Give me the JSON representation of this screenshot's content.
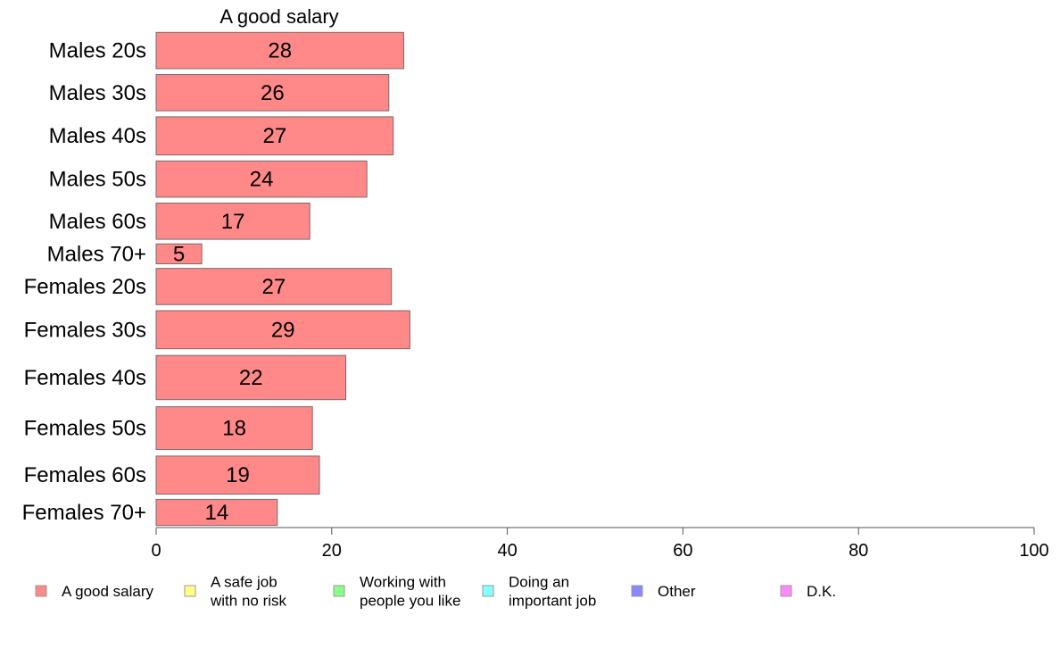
{
  "chart_data": {
    "type": "bar",
    "orientation": "horizontal",
    "title": "A good salary",
    "xlim": [
      0,
      100
    ],
    "xticks": [
      0,
      20,
      40,
      60,
      80,
      100
    ],
    "grid": false,
    "categories": [
      "Males 20s",
      "Males 30s",
      "Males 40s",
      "Males 50s",
      "Males 60s",
      "Males 70+",
      "Females 20s",
      "Females 30s",
      "Females 40s",
      "Females 50s",
      "Females 60s",
      "Females 70+"
    ],
    "series": [
      {
        "name": "A good salary",
        "color": "#ff8888",
        "values": [
          28.2,
          26.5,
          27.0,
          24.0,
          17.5,
          5.2,
          26.8,
          28.9,
          21.6,
          17.8,
          18.6,
          13.8
        ],
        "labels": [
          "28",
          "26",
          "27",
          "24",
          "17",
          "5",
          "27",
          "29",
          "22",
          "18",
          "19",
          "14"
        ]
      }
    ],
    "category_weights": [
      1,
      1,
      1.05,
      1,
      1,
      0.55,
      1,
      1.05,
      1.22,
      1.18,
      1.05,
      0.72
    ],
    "legend": {
      "placement": "bottom",
      "items": [
        {
          "lines": [
            "A good salary"
          ],
          "color": "#ff8888"
        },
        {
          "lines": [
            "A safe job",
            "with no risk"
          ],
          "color": "#ffff88"
        },
        {
          "lines": [
            "Working with",
            "people you like"
          ],
          "color": "#88ff88"
        },
        {
          "lines": [
            "Doing an",
            "important job"
          ],
          "color": "#88ffff"
        },
        {
          "lines": [
            "Other"
          ],
          "color": "#8888ff"
        },
        {
          "lines": [
            "D.K."
          ],
          "color": "#ff88ff"
        }
      ]
    }
  }
}
